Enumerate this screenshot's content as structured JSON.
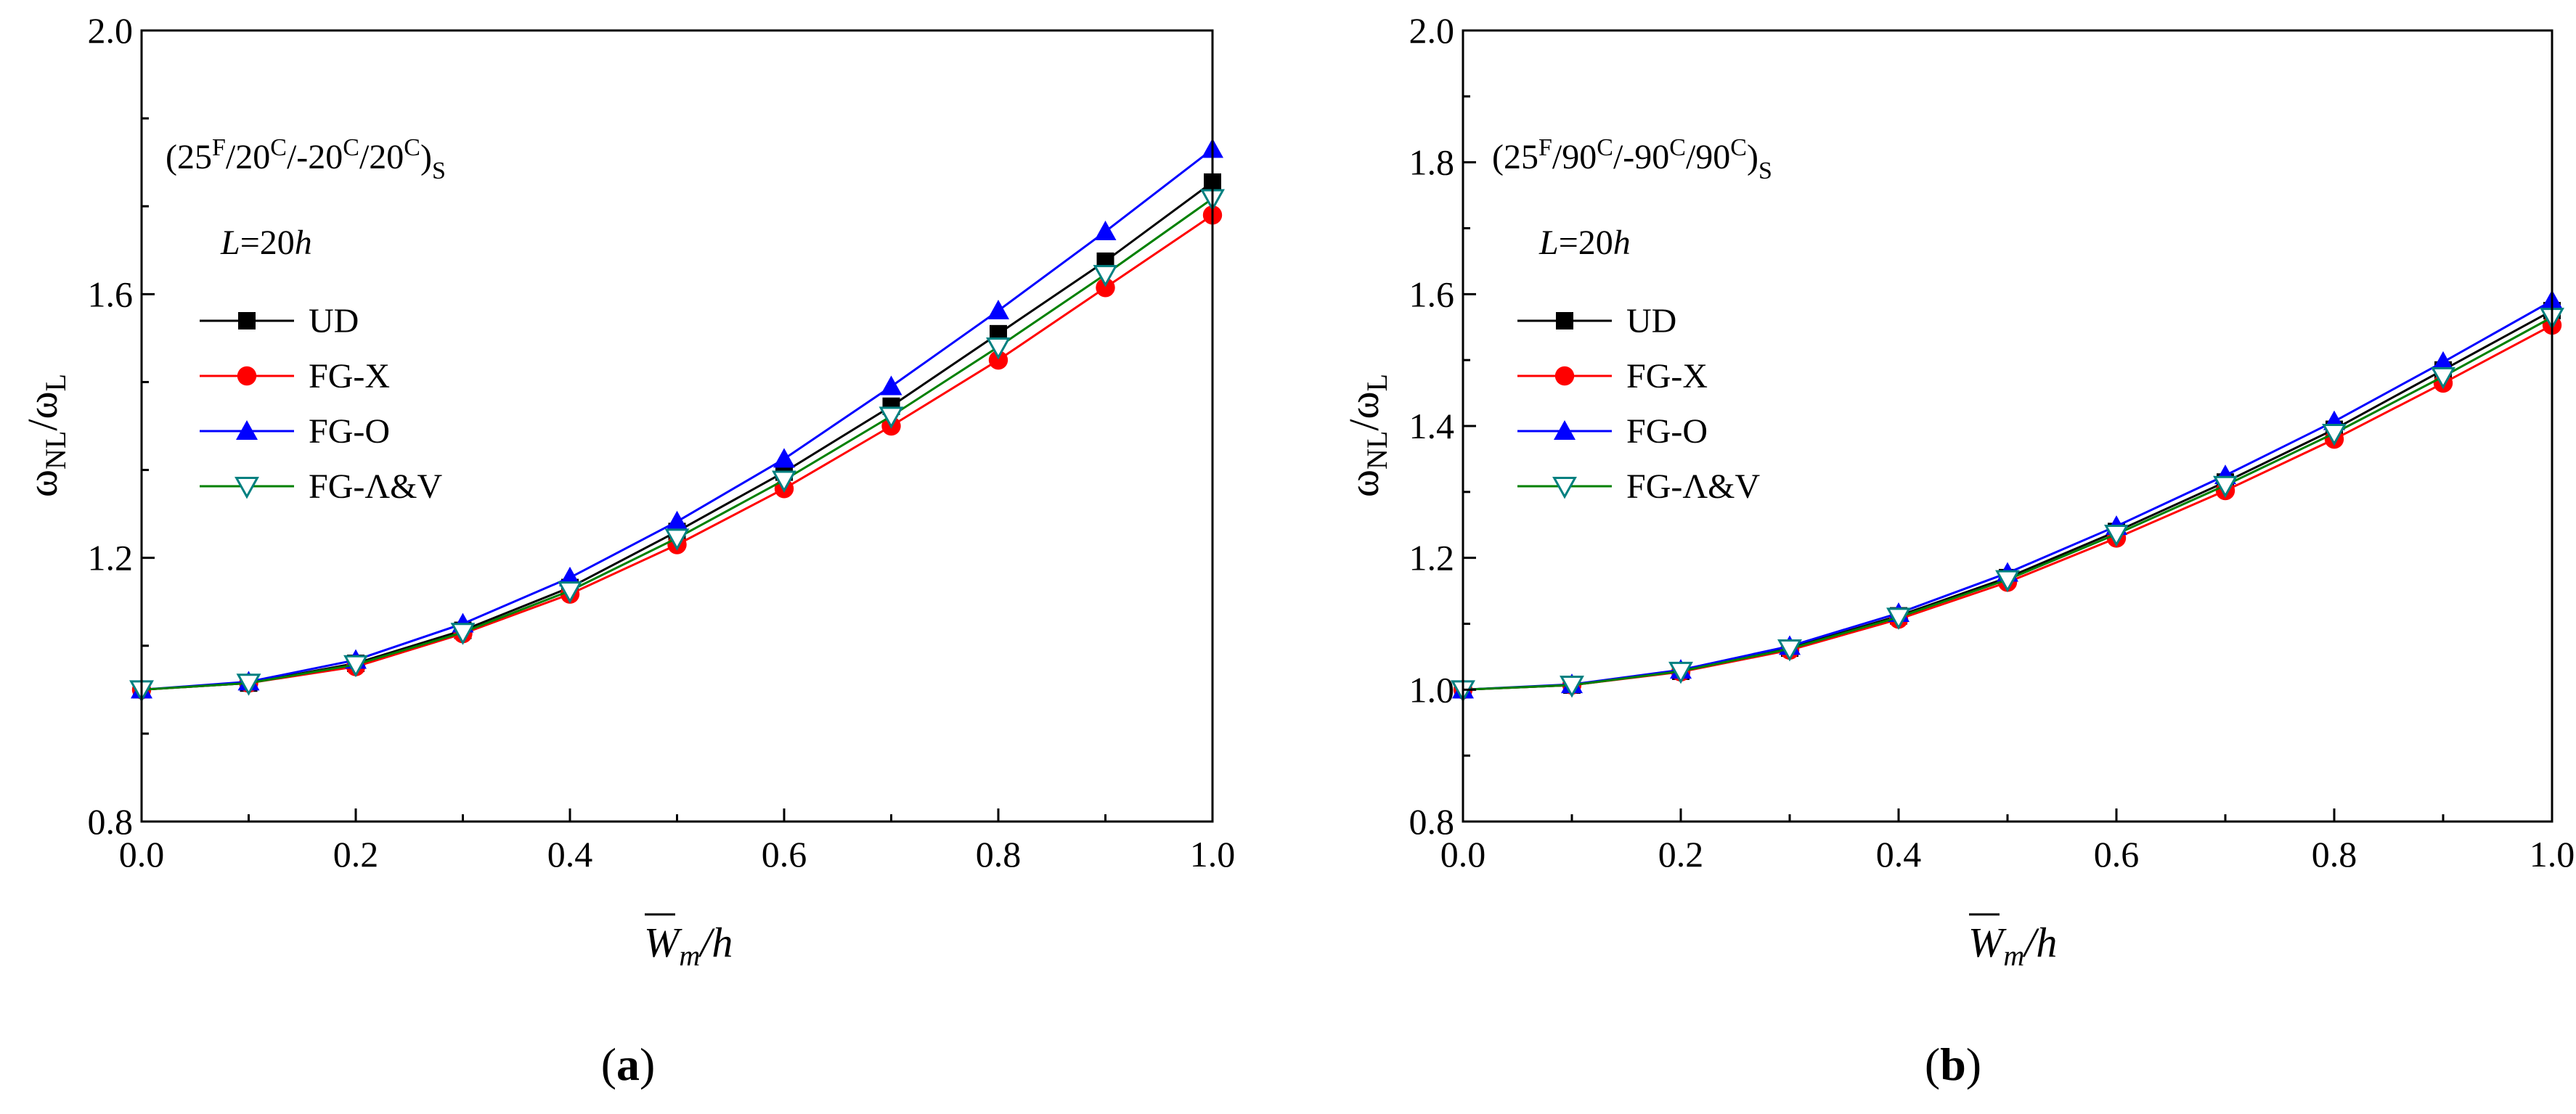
{
  "figure": {
    "panels": [
      {
        "panel_label": {
          "open": "(",
          "letter": "a",
          "close": ")"
        },
        "annotation": {
          "lead": "(25",
          "s1": "F",
          "t1": "/20",
          "s2": "C",
          "t2": "/-20",
          "s3": "C",
          "t3": "/20",
          "s4": "C",
          "t4": ")",
          "sub": "S"
        },
        "length_label": {
          "italic1": "L",
          "eq": "=20",
          "italic2": "h"
        }
      },
      {
        "panel_label": {
          "open": "(",
          "letter": "b",
          "close": ")"
        },
        "annotation": {
          "lead": "(25",
          "s1": "F",
          "t1": "/90",
          "s2": "C",
          "t2": "/-90",
          "s3": "C",
          "t3": "/90",
          "s4": "C",
          "t4": ")",
          "sub": "S"
        },
        "length_label": {
          "italic1": "L",
          "eq": "=20",
          "italic2": "h"
        }
      }
    ],
    "ylabel_parts": {
      "w1": "ω",
      "sub1": "NL",
      "slash": "/ω",
      "sub2": "L"
    },
    "xlabel_parts": {
      "w": "W",
      "sub": "m",
      "rest": "/h"
    }
  },
  "chart_data": [
    {
      "type": "line",
      "title": "(a)",
      "xlabel": "W̄m/h",
      "ylabel": "ωNL/ωL",
      "xlim": [
        0.0,
        1.0
      ],
      "ylim": [
        0.8,
        2.0
      ],
      "xticks": [
        0.0,
        0.2,
        0.4,
        0.6,
        0.8,
        1.0
      ],
      "xtick_labels": [
        "0.0",
        "0.2",
        "0.4",
        "0.6",
        "0.8",
        "1.0"
      ],
      "yticks": [
        0.8,
        1.2,
        1.6,
        2.0
      ],
      "ytick_labels": [
        "0.8",
        "1.2",
        "1.6",
        "2.0"
      ],
      "x": [
        0.0,
        0.1,
        0.2,
        0.3,
        0.4,
        0.5,
        0.6,
        0.7,
        0.8,
        0.9,
        1.0
      ],
      "series": [
        {
          "name": "UD",
          "color": "#000000",
          "marker": "square",
          "values": [
            1.0,
            1.01,
            1.04,
            1.09,
            1.155,
            1.24,
            1.33,
            1.43,
            1.54,
            1.65,
            1.77
          ]
        },
        {
          "name": "FG-X",
          "color": "#ff0000",
          "marker": "circle",
          "values": [
            1.0,
            1.01,
            1.035,
            1.085,
            1.145,
            1.22,
            1.305,
            1.4,
            1.5,
            1.61,
            1.72
          ]
        },
        {
          "name": "FG-O",
          "color": "#0000ff",
          "marker": "triangle-up",
          "values": [
            1.0,
            1.012,
            1.045,
            1.1,
            1.17,
            1.255,
            1.35,
            1.46,
            1.575,
            1.695,
            1.82
          ]
        },
        {
          "name": "FG-Λ&V",
          "color": "#008000",
          "marker_color": "#008080",
          "marker": "triangle-down-open",
          "values": [
            1.0,
            1.01,
            1.038,
            1.087,
            1.15,
            1.23,
            1.318,
            1.415,
            1.52,
            1.63,
            1.745
          ]
        }
      ]
    },
    {
      "type": "line",
      "title": "(b)",
      "xlabel": "W̄m/h",
      "ylabel": "ωNL/ωL",
      "xlim": [
        0.0,
        1.0
      ],
      "ylim": [
        0.8,
        2.0
      ],
      "xticks": [
        0.0,
        0.2,
        0.4,
        0.6,
        0.8,
        1.0
      ],
      "xtick_labels": [
        "0.0",
        "0.2",
        "0.4",
        "0.6",
        "0.8",
        "1.0"
      ],
      "yticks": [
        0.8,
        1.0,
        1.2,
        1.4,
        1.6,
        1.8,
        2.0
      ],
      "ytick_labels": [
        "0.8",
        "1.0",
        "1.2",
        "1.4",
        "1.6",
        "1.8",
        "2.0"
      ],
      "x": [
        0.0,
        0.1,
        0.2,
        0.3,
        0.4,
        0.5,
        0.6,
        0.7,
        0.8,
        0.9,
        1.0
      ],
      "series": [
        {
          "name": "UD",
          "color": "#000000",
          "marker": "square",
          "values": [
            1.0,
            1.007,
            1.028,
            1.063,
            1.112,
            1.17,
            1.24,
            1.315,
            1.395,
            1.485,
            1.575
          ]
        },
        {
          "name": "FG-X",
          "color": "#ff0000",
          "marker": "circle",
          "values": [
            1.0,
            1.007,
            1.027,
            1.06,
            1.107,
            1.163,
            1.23,
            1.302,
            1.38,
            1.465,
            1.553
          ]
        },
        {
          "name": "FG-O",
          "color": "#0000ff",
          "marker": "triangle-up",
          "values": [
            1.0,
            1.008,
            1.03,
            1.066,
            1.116,
            1.177,
            1.248,
            1.325,
            1.407,
            1.497,
            1.59
          ]
        },
        {
          "name": "FG-Λ&V",
          "color": "#008000",
          "marker_color": "#008080",
          "marker": "triangle-down-open",
          "values": [
            1.0,
            1.007,
            1.028,
            1.062,
            1.11,
            1.167,
            1.236,
            1.31,
            1.389,
            1.475,
            1.565
          ]
        }
      ]
    }
  ]
}
